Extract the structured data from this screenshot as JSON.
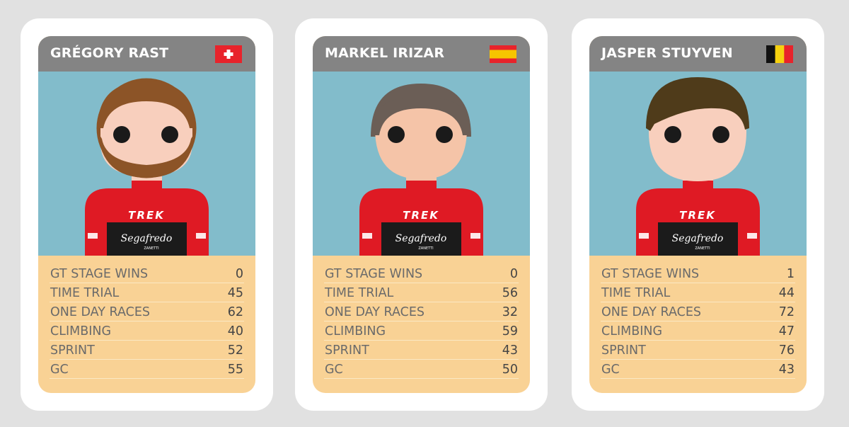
{
  "colors": {
    "background": "#e1e1e1",
    "card": "#ffffff",
    "header": "#848484",
    "portrait_bg": "#82bccb",
    "stats_bg": "#f9d295",
    "jersey_red": "#df1a24",
    "jersey_black": "#1b1b1b",
    "skin": "#f8cfbd"
  },
  "cards": [
    {
      "name": "GRÉGORY RAST",
      "flag": "switzerland-flag-icon",
      "hair_color": "#8c5427",
      "beard": true,
      "jersey_text": "TREK",
      "sponsor_text": "Segafredo",
      "sponsor_sub": "ZANETTI",
      "stats": [
        {
          "label": "GT STAGE WINS",
          "value": "0"
        },
        {
          "label": "TIME TRIAL",
          "value": "45"
        },
        {
          "label": "ONE DAY RACES",
          "value": "62"
        },
        {
          "label": "CLIMBING",
          "value": "40"
        },
        {
          "label": "SPRINT",
          "value": "52"
        },
        {
          "label": "GC",
          "value": "55"
        }
      ]
    },
    {
      "name": "MARKEL IRIZAR",
      "flag": "spain-flag-icon",
      "hair_color": "#6b5e56",
      "beard": false,
      "jersey_text": "TREK",
      "sponsor_text": "Segafredo",
      "sponsor_sub": "ZANETTI",
      "stats": [
        {
          "label": "GT STAGE WINS",
          "value": "0"
        },
        {
          "label": "TIME TRIAL",
          "value": "56"
        },
        {
          "label": "ONE DAY RACES",
          "value": "32"
        },
        {
          "label": "CLIMBING",
          "value": "59"
        },
        {
          "label": "SPRINT",
          "value": "43"
        },
        {
          "label": "GC",
          "value": "50"
        }
      ]
    },
    {
      "name": "JASPER STUYVEN",
      "flag": "belgium-flag-icon",
      "hair_color": "#4f3b1a",
      "beard": false,
      "jersey_text": "TREK",
      "sponsor_text": "Segafredo",
      "sponsor_sub": "ZANETTI",
      "stats": [
        {
          "label": "GT STAGE WINS",
          "value": "1"
        },
        {
          "label": "TIME TRIAL",
          "value": "44"
        },
        {
          "label": "ONE DAY RACES",
          "value": "72"
        },
        {
          "label": "CLIMBING",
          "value": "47"
        },
        {
          "label": "SPRINT",
          "value": "76"
        },
        {
          "label": "GC",
          "value": "43"
        }
      ]
    }
  ]
}
